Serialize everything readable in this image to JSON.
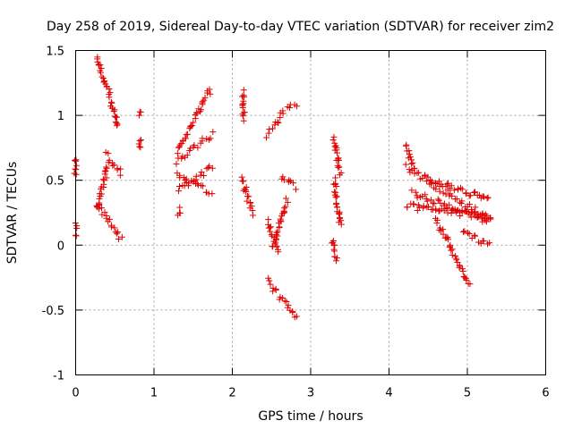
{
  "chart_data": {
    "type": "scatter",
    "title": "Day 258 of 2019, Sidereal Day-to-day VTEC variation (SDTVAR) for receiver zim2",
    "xlabel": "GPS time / hours",
    "ylabel": "SDTVAR / TECUs",
    "xlim": [
      0,
      6
    ],
    "ylim": [
      -1,
      1.5
    ],
    "xticks": [
      0,
      1,
      2,
      3,
      4,
      5,
      6
    ],
    "yticks": [
      -1,
      -0.5,
      0,
      0.5,
      1,
      1.5
    ],
    "ytick_labels": [
      "-1",
      "-0.5",
      "0",
      "0.5",
      "1",
      "1.5"
    ],
    "xtick_labels": [
      "0",
      "1",
      "2",
      "3",
      "4",
      "5",
      "6"
    ],
    "grid": true,
    "marker": "+",
    "color": "#e00000",
    "series": [
      {
        "name": "SDTVAR",
        "segments": [
          {
            "x0": 0.0,
            "x1": 0.0,
            "y0": 0.67,
            "y1": 0.55
          },
          {
            "x0": 0.0,
            "x1": 0.0,
            "y0": 0.16,
            "y1": 0.08
          },
          {
            "x0": 0.27,
            "x1": 0.55,
            "y0": 1.45,
            "y1": 0.92
          },
          {
            "x0": 0.27,
            "x1": 0.42,
            "y0": 0.3,
            "y1": 0.62
          },
          {
            "x0": 0.4,
            "x1": 0.58,
            "y0": 0.7,
            "y1": 0.55
          },
          {
            "x0": 0.28,
            "x1": 0.58,
            "y0": 0.32,
            "y1": 0.05
          },
          {
            "x0": 0.82,
            "x1": 0.82,
            "y0": 1.02,
            "y1": 1.0
          },
          {
            "x0": 0.82,
            "x1": 0.82,
            "y0": 0.83,
            "y1": 0.76
          },
          {
            "x0": 1.29,
            "x1": 1.72,
            "y0": 0.72,
            "y1": 1.2
          },
          {
            "x0": 1.29,
            "x1": 1.74,
            "y0": 0.65,
            "y1": 0.85
          },
          {
            "x0": 1.29,
            "x1": 1.74,
            "y0": 0.55,
            "y1": 0.4
          },
          {
            "x0": 1.31,
            "x1": 1.74,
            "y0": 0.42,
            "y1": 0.6
          },
          {
            "x0": 1.32,
            "x1": 1.32,
            "y0": 0.28,
            "y1": 0.22
          },
          {
            "x0": 2.13,
            "x1": 2.15,
            "y0": 1.19,
            "y1": 0.98
          },
          {
            "x0": 2.12,
            "x1": 2.25,
            "y0": 0.52,
            "y1": 0.25
          },
          {
            "x0": 2.45,
            "x1": 2.6,
            "y0": 0.85,
            "y1": 0.98
          },
          {
            "x0": 2.6,
            "x1": 2.81,
            "y0": 1.02,
            "y1": 1.08
          },
          {
            "x0": 2.45,
            "x1": 2.58,
            "y0": 0.18,
            "y1": -0.05
          },
          {
            "x0": 2.52,
            "x1": 2.7,
            "y0": -0.02,
            "y1": 0.35
          },
          {
            "x0": 2.62,
            "x1": 2.81,
            "y0": 0.52,
            "y1": 0.45
          },
          {
            "x0": 2.45,
            "x1": 2.82,
            "y0": -0.27,
            "y1": -0.56
          },
          {
            "x0": 3.3,
            "x1": 3.38,
            "y0": 0.83,
            "y1": 0.55
          },
          {
            "x0": 3.3,
            "x1": 3.38,
            "y0": 0.5,
            "y1": 0.15
          },
          {
            "x0": 3.28,
            "x1": 3.32,
            "y0": 0.05,
            "y1": -0.12
          },
          {
            "x0": 4.22,
            "x1": 4.32,
            "y0": 0.76,
            "y1": 0.58
          },
          {
            "x0": 4.22,
            "x1": 5.28,
            "y0": 0.6,
            "y1": 0.2
          },
          {
            "x0": 4.22,
            "x1": 5.28,
            "y0": 0.3,
            "y1": 0.22
          },
          {
            "x0": 4.45,
            "x1": 5.28,
            "y0": 0.52,
            "y1": 0.35
          },
          {
            "x0": 4.6,
            "x1": 5.02,
            "y0": 0.2,
            "y1": -0.3
          },
          {
            "x0": 4.95,
            "x1": 5.28,
            "y0": 0.1,
            "y1": 0.0
          },
          {
            "x0": 4.3,
            "x1": 5.28,
            "y0": 0.4,
            "y1": 0.18
          }
        ]
      }
    ]
  }
}
